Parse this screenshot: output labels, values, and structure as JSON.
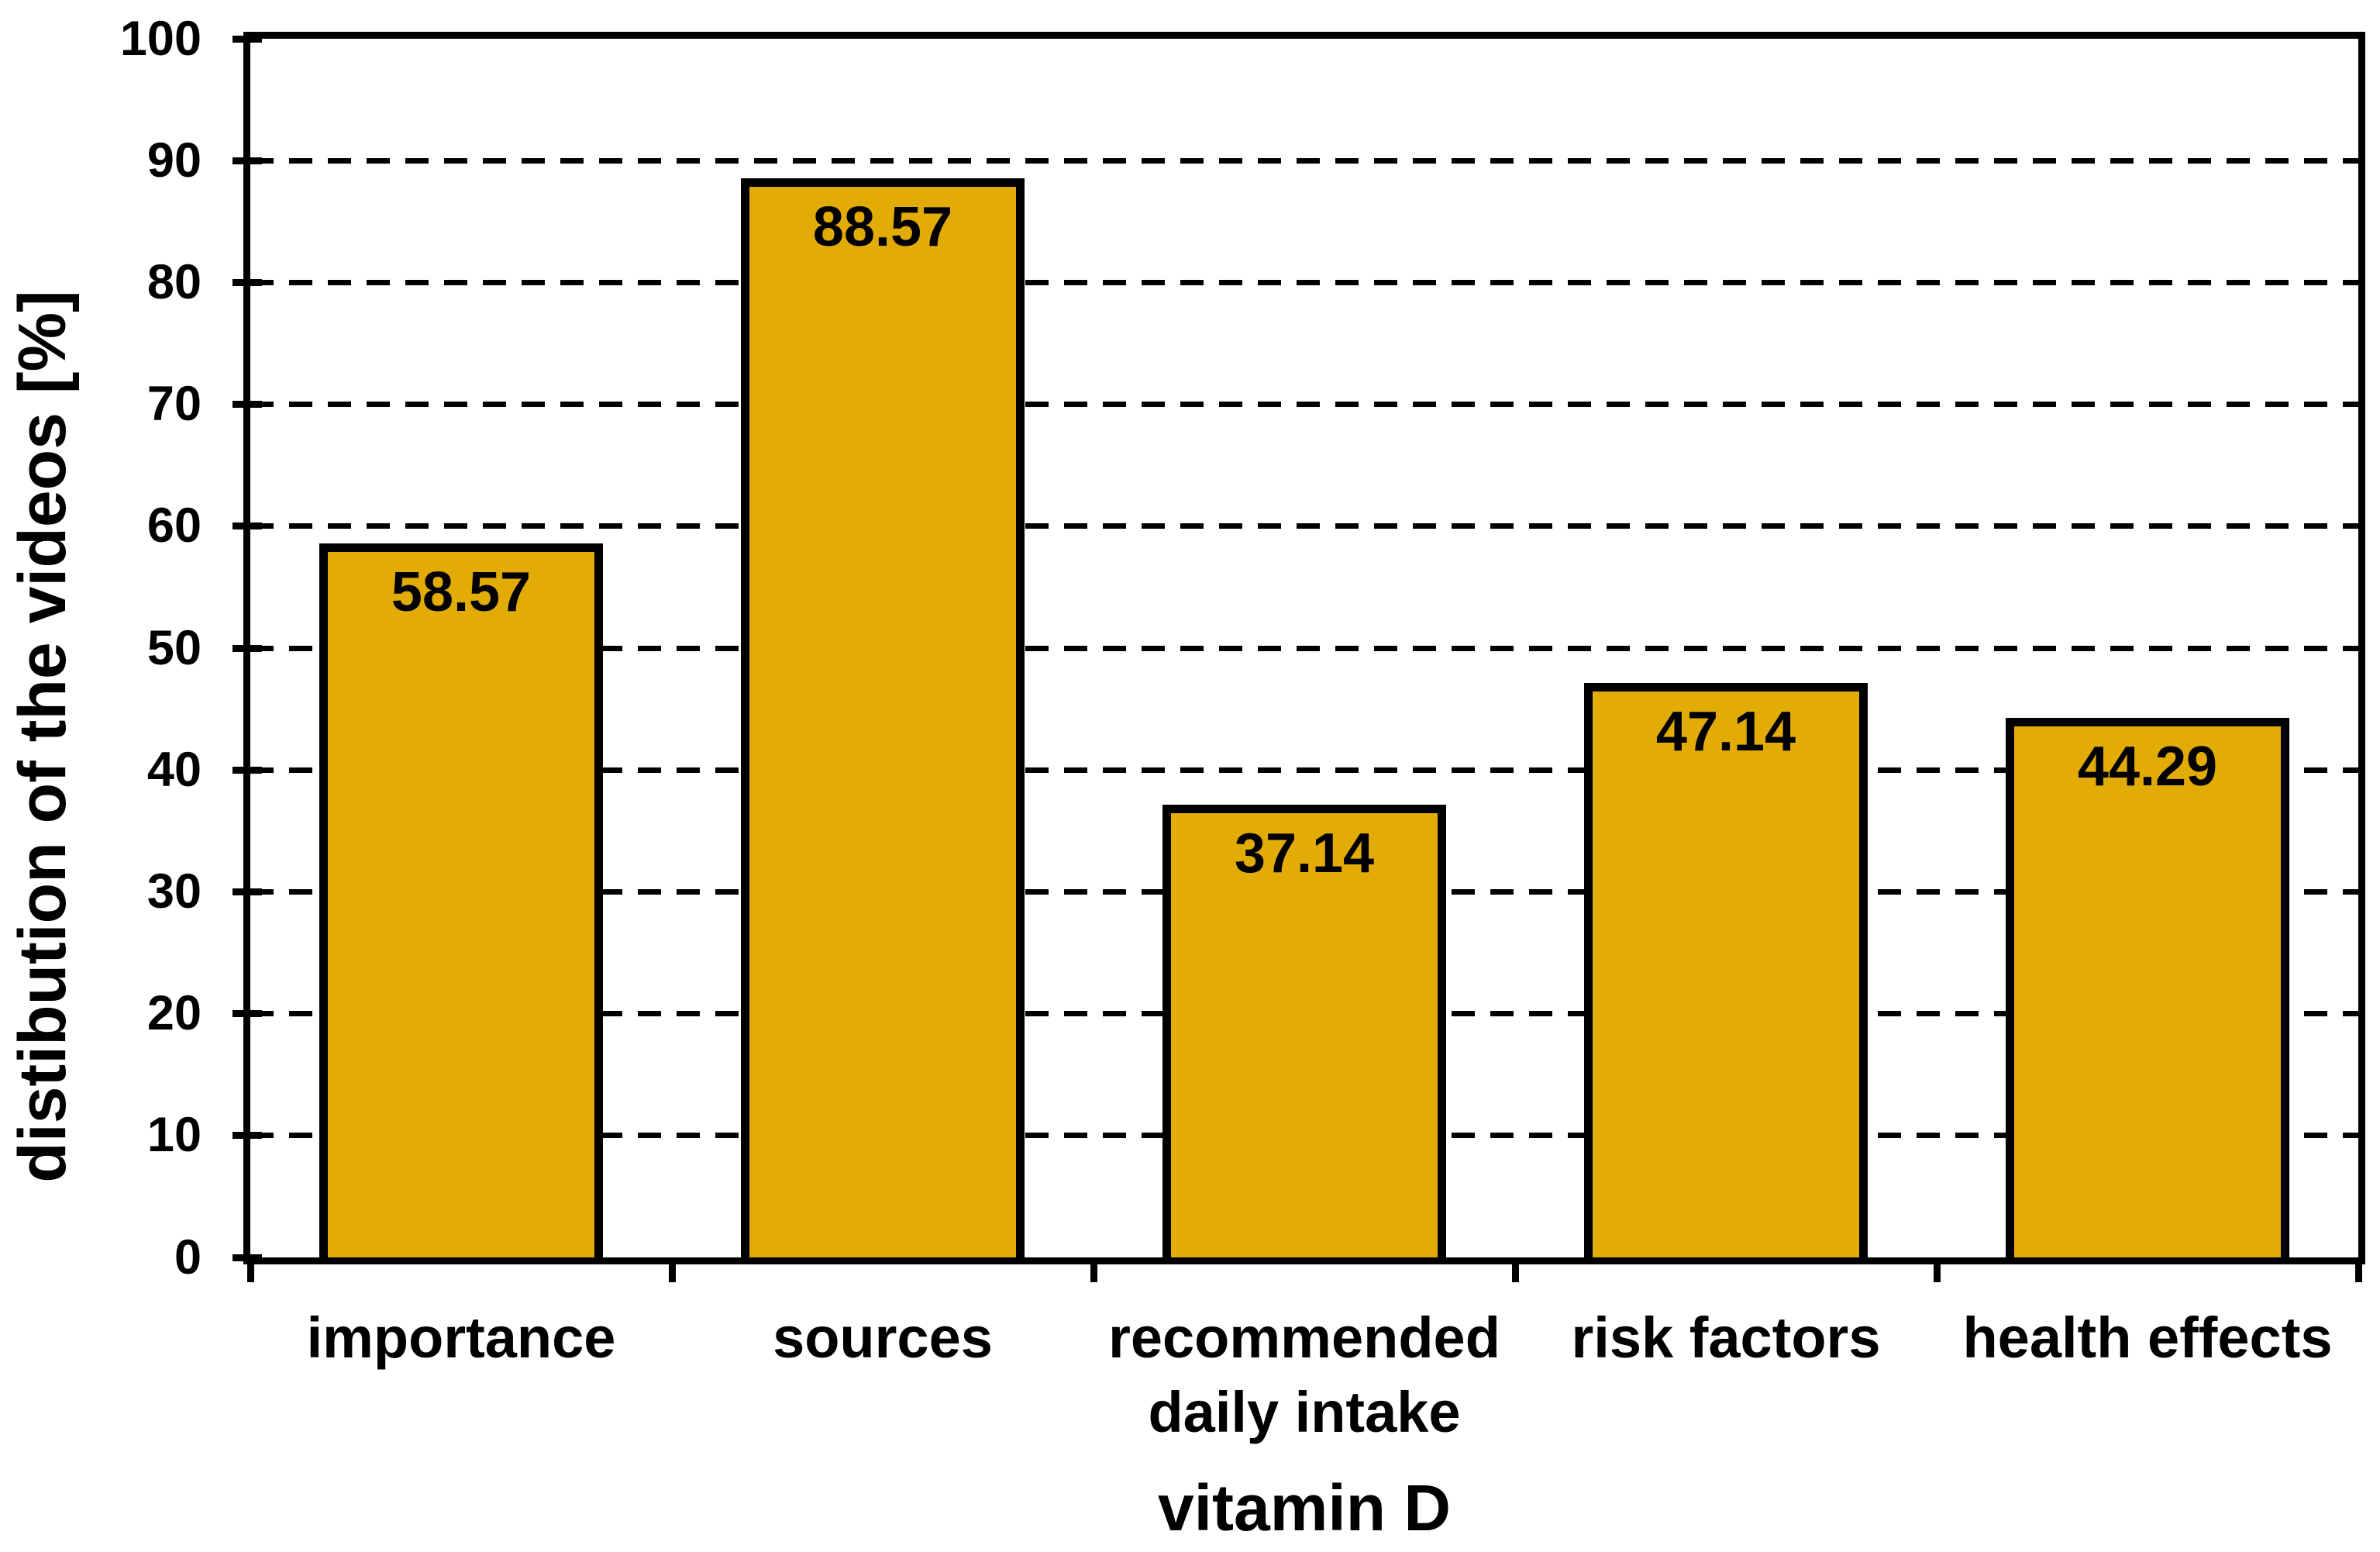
{
  "chart_data": {
    "type": "bar",
    "title": "",
    "xlabel": "vitamin D",
    "ylabel": "distibution of the videos [%]",
    "categories": [
      "importance",
      "sources",
      "recommended\ndaily intake",
      "risk factors",
      "health effects"
    ],
    "values": [
      58.57,
      88.57,
      37.14,
      47.14,
      44.29
    ],
    "data_labels": [
      "58.57",
      "88.57",
      "37.14",
      "47.14",
      "44.29"
    ],
    "ylim": [
      0,
      100
    ],
    "yticks": [
      0,
      10,
      20,
      30,
      40,
      50,
      60,
      70,
      80,
      90,
      100
    ],
    "grid": "horizontal-dashed",
    "legend": null,
    "colors": {
      "bar_fill": "#E2AB06",
      "bar_border": "#000000",
      "axis": "#000000",
      "text": "#000000",
      "background": "#FFFFFF"
    }
  }
}
